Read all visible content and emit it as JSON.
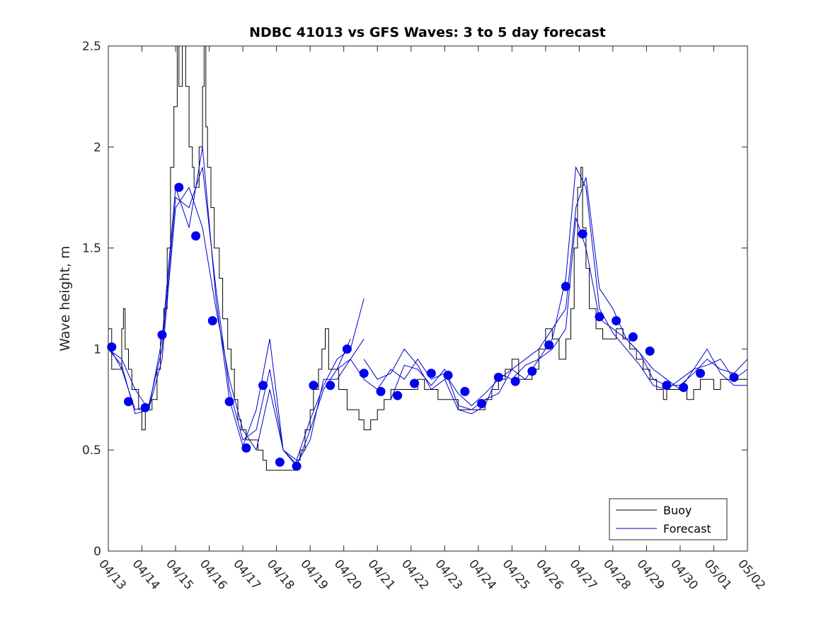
{
  "chart_data": {
    "type": "line",
    "title": "NDBC 41013 vs GFS Waves: 3 to 5 day forecast",
    "ylabel": "Wave height, m",
    "xlabel": "",
    "xlim": [
      0,
      19
    ],
    "ylim": [
      0,
      2.5
    ],
    "yticks": [
      0,
      0.5,
      1,
      1.5,
      2,
      2.5
    ],
    "ytick_labels": [
      "0",
      "0.5",
      "1",
      "1.5",
      "2",
      "2.5"
    ],
    "xtick_labels": [
      "04/13",
      "04/14",
      "04/15",
      "04/16",
      "04/17",
      "04/18",
      "04/19",
      "04/20",
      "04/21",
      "04/22",
      "04/23",
      "04/24",
      "04/25",
      "04/26",
      "04/27",
      "04/28",
      "04/29",
      "04/30",
      "05/01",
      "05/02"
    ],
    "legend": {
      "position": "bottom-right",
      "entries": [
        {
          "label": "Buoy",
          "color": "#000000"
        },
        {
          "label": "Forecast",
          "color": "#0000cc"
        }
      ]
    },
    "buoy": {
      "name": "Buoy",
      "color": "#000000",
      "points": [
        [
          0,
          1.1
        ],
        [
          0.1,
          0.9
        ],
        [
          0.3,
          0.9
        ],
        [
          0.4,
          1.1
        ],
        [
          0.45,
          1.2
        ],
        [
          0.5,
          1.0
        ],
        [
          0.6,
          0.9
        ],
        [
          0.7,
          0.8
        ],
        [
          0.9,
          0.7
        ],
        [
          1.0,
          0.6
        ],
        [
          1.1,
          0.7
        ],
        [
          1.3,
          0.75
        ],
        [
          1.45,
          0.9
        ],
        [
          1.55,
          1.05
        ],
        [
          1.65,
          1.2
        ],
        [
          1.75,
          1.5
        ],
        [
          1.85,
          1.9
        ],
        [
          1.95,
          2.2
        ],
        [
          2.05,
          2.5
        ],
        [
          2.1,
          2.3
        ],
        [
          2.2,
          2.5
        ],
        [
          2.3,
          2.3
        ],
        [
          2.4,
          2.0
        ],
        [
          2.5,
          1.9
        ],
        [
          2.55,
          1.8
        ],
        [
          2.7,
          2.0
        ],
        [
          2.8,
          2.3
        ],
        [
          2.85,
          2.5
        ],
        [
          2.9,
          2.1
        ],
        [
          2.95,
          1.9
        ],
        [
          3.05,
          1.7
        ],
        [
          3.15,
          1.5
        ],
        [
          3.3,
          1.35
        ],
        [
          3.4,
          1.15
        ],
        [
          3.55,
          1.0
        ],
        [
          3.65,
          0.9
        ],
        [
          3.75,
          0.75
        ],
        [
          3.85,
          0.65
        ],
        [
          3.95,
          0.6
        ],
        [
          4.1,
          0.55
        ],
        [
          4.3,
          0.55
        ],
        [
          4.45,
          0.5
        ],
        [
          4.6,
          0.45
        ],
        [
          4.7,
          0.4
        ],
        [
          4.9,
          0.4
        ],
        [
          5.2,
          0.4
        ],
        [
          5.5,
          0.4
        ],
        [
          5.6,
          0.45
        ],
        [
          5.7,
          0.5
        ],
        [
          5.85,
          0.6
        ],
        [
          6.0,
          0.7
        ],
        [
          6.1,
          0.8
        ],
        [
          6.25,
          0.9
        ],
        [
          6.35,
          1.0
        ],
        [
          6.45,
          1.1
        ],
        [
          6.55,
          0.9
        ],
        [
          6.7,
          0.9
        ],
        [
          6.85,
          0.8
        ],
        [
          7.0,
          0.8
        ],
        [
          7.1,
          0.7
        ],
        [
          7.3,
          0.7
        ],
        [
          7.45,
          0.65
        ],
        [
          7.6,
          0.6
        ],
        [
          7.8,
          0.65
        ],
        [
          8.0,
          0.7
        ],
        [
          8.2,
          0.75
        ],
        [
          8.4,
          0.8
        ],
        [
          8.6,
          0.8
        ],
        [
          8.8,
          0.8
        ],
        [
          9.0,
          0.8
        ],
        [
          9.2,
          0.85
        ],
        [
          9.4,
          0.8
        ],
        [
          9.6,
          0.8
        ],
        [
          9.8,
          0.75
        ],
        [
          10.0,
          0.75
        ],
        [
          10.2,
          0.75
        ],
        [
          10.4,
          0.7
        ],
        [
          10.6,
          0.7
        ],
        [
          10.8,
          0.7
        ],
        [
          11.0,
          0.7
        ],
        [
          11.2,
          0.75
        ],
        [
          11.4,
          0.8
        ],
        [
          11.6,
          0.85
        ],
        [
          11.8,
          0.9
        ],
        [
          12.0,
          0.95
        ],
        [
          12.2,
          0.85
        ],
        [
          12.4,
          0.85
        ],
        [
          12.6,
          0.9
        ],
        [
          12.8,
          1.0
        ],
        [
          13.0,
          1.1
        ],
        [
          13.2,
          1.05
        ],
        [
          13.4,
          0.95
        ],
        [
          13.6,
          1.05
        ],
        [
          13.75,
          1.2
        ],
        [
          13.85,
          1.5
        ],
        [
          13.95,
          1.8
        ],
        [
          14.05,
          1.9
        ],
        [
          14.1,
          1.6
        ],
        [
          14.2,
          1.4
        ],
        [
          14.3,
          1.2
        ],
        [
          14.5,
          1.1
        ],
        [
          14.7,
          1.05
        ],
        [
          14.9,
          1.05
        ],
        [
          15.1,
          1.1
        ],
        [
          15.3,
          1.05
        ],
        [
          15.5,
          1.0
        ],
        [
          15.7,
          0.95
        ],
        [
          15.9,
          0.9
        ],
        [
          16.1,
          0.85
        ],
        [
          16.3,
          0.8
        ],
        [
          16.5,
          0.75
        ],
        [
          16.6,
          0.8
        ],
        [
          16.8,
          0.8
        ],
        [
          17.0,
          0.8
        ],
        [
          17.2,
          0.75
        ],
        [
          17.4,
          0.8
        ],
        [
          17.6,
          0.85
        ],
        [
          17.8,
          0.85
        ],
        [
          18.0,
          0.8
        ],
        [
          18.2,
          0.85
        ],
        [
          18.4,
          0.85
        ],
        [
          18.6,
          0.85
        ],
        [
          18.8,
          0.85
        ],
        [
          19.0,
          0.9
        ]
      ]
    },
    "forecast_series": [
      {
        "points": [
          [
            0,
            1.0
          ],
          [
            0.4,
            0.95
          ],
          [
            0.8,
            0.8
          ],
          [
            1.2,
            0.7
          ],
          [
            1.6,
            0.95
          ],
          [
            2.0,
            1.7
          ],
          [
            2.4,
            1.8
          ],
          [
            2.8,
            1.6
          ],
          [
            3.2,
            1.2
          ],
          [
            3.6,
            0.85
          ],
          [
            4.0,
            0.6
          ],
          [
            4.4,
            0.5
          ],
          [
            4.8,
            0.8
          ],
          [
            5.2,
            0.5
          ],
          [
            5.6,
            0.42
          ],
          [
            6.0,
            0.6
          ],
          [
            6.4,
            0.8
          ],
          [
            6.8,
            0.9
          ],
          [
            7.2,
            1.05
          ]
        ]
      },
      {
        "points": [
          [
            0,
            1.02
          ],
          [
            0.4,
            0.9
          ],
          [
            0.8,
            0.7
          ],
          [
            1.2,
            0.72
          ],
          [
            1.6,
            1.0
          ],
          [
            2.0,
            1.75
          ],
          [
            2.4,
            1.7
          ],
          [
            2.8,
            1.9
          ],
          [
            3.2,
            1.3
          ],
          [
            3.6,
            0.8
          ],
          [
            4.0,
            0.55
          ],
          [
            4.4,
            0.6
          ],
          [
            4.8,
            0.9
          ],
          [
            5.2,
            0.5
          ],
          [
            5.6,
            0.43
          ],
          [
            6.0,
            0.55
          ],
          [
            6.4,
            0.85
          ],
          [
            6.8,
            0.85
          ],
          [
            7.2,
            0.95
          ],
          [
            7.6,
            1.05
          ]
        ]
      },
      {
        "points": [
          [
            0,
            1.0
          ],
          [
            0.4,
            0.92
          ],
          [
            0.8,
            0.68
          ],
          [
            1.2,
            0.7
          ],
          [
            1.6,
            1.05
          ],
          [
            2.0,
            1.8
          ],
          [
            2.4,
            1.6
          ],
          [
            2.8,
            2.0
          ],
          [
            3.2,
            1.25
          ],
          [
            3.6,
            0.75
          ],
          [
            4.0,
            0.52
          ],
          [
            4.4,
            0.7
          ],
          [
            4.8,
            1.05
          ],
          [
            5.2,
            0.5
          ],
          [
            5.6,
            0.45
          ],
          [
            6.0,
            0.65
          ],
          [
            6.4,
            0.82
          ],
          [
            6.8,
            0.95
          ],
          [
            7.2,
            1.0
          ],
          [
            7.6,
            1.25
          ]
        ]
      },
      {
        "points": [
          [
            6.8,
            0.9
          ],
          [
            7.2,
            0.95
          ],
          [
            7.6,
            0.85
          ],
          [
            8.0,
            0.8
          ],
          [
            8.4,
            0.9
          ],
          [
            8.8,
            0.85
          ],
          [
            9.2,
            0.95
          ],
          [
            9.6,
            0.85
          ],
          [
            10.0,
            0.88
          ],
          [
            10.4,
            0.78
          ],
          [
            10.8,
            0.72
          ],
          [
            11.2,
            0.78
          ],
          [
            11.6,
            0.85
          ],
          [
            12.0,
            0.9
          ],
          [
            12.4,
            0.85
          ],
          [
            12.8,
            0.95
          ],
          [
            13.2,
            1.0
          ],
          [
            13.6,
            1.1
          ],
          [
            13.9,
            1.65
          ],
          [
            14.2,
            1.5
          ],
          [
            14.6,
            1.15
          ],
          [
            15.0,
            1.1
          ],
          [
            15.4,
            1.05
          ],
          [
            15.8,
            0.98
          ],
          [
            16.2,
            0.85
          ],
          [
            16.6,
            0.82
          ],
          [
            17.0,
            0.82
          ],
          [
            17.4,
            0.88
          ],
          [
            17.8,
            0.95
          ],
          [
            18.2,
            0.9
          ],
          [
            18.6,
            0.88
          ],
          [
            19.0,
            0.95
          ]
        ]
      },
      {
        "points": [
          [
            7.6,
            0.95
          ],
          [
            8.0,
            0.85
          ],
          [
            8.4,
            0.88
          ],
          [
            8.8,
            1.0
          ],
          [
            9.2,
            0.92
          ],
          [
            9.6,
            0.8
          ],
          [
            10.0,
            0.85
          ],
          [
            10.4,
            0.7
          ],
          [
            10.8,
            0.68
          ],
          [
            11.2,
            0.72
          ],
          [
            11.6,
            0.88
          ],
          [
            12.0,
            0.85
          ],
          [
            12.4,
            0.92
          ],
          [
            12.8,
            0.95
          ],
          [
            13.2,
            1.05
          ],
          [
            13.6,
            1.35
          ],
          [
            13.9,
            1.9
          ],
          [
            14.2,
            1.8
          ],
          [
            14.6,
            1.2
          ],
          [
            15.0,
            1.08
          ],
          [
            15.4,
            1.0
          ],
          [
            15.8,
            0.92
          ],
          [
            16.2,
            0.82
          ],
          [
            16.6,
            0.8
          ],
          [
            17.0,
            0.85
          ],
          [
            17.4,
            0.9
          ],
          [
            17.8,
            1.0
          ],
          [
            18.2,
            0.88
          ],
          [
            18.6,
            0.82
          ],
          [
            19.0,
            0.82
          ]
        ]
      },
      {
        "points": [
          [
            8.4,
            0.75
          ],
          [
            8.8,
            0.92
          ],
          [
            9.2,
            0.9
          ],
          [
            9.6,
            0.82
          ],
          [
            10.0,
            0.9
          ],
          [
            10.4,
            0.72
          ],
          [
            10.8,
            0.7
          ],
          [
            11.2,
            0.75
          ],
          [
            11.6,
            0.78
          ],
          [
            12.0,
            0.9
          ],
          [
            12.4,
            0.95
          ],
          [
            12.8,
            1.0
          ],
          [
            13.2,
            1.1
          ],
          [
            13.6,
            1.2
          ],
          [
            13.9,
            1.7
          ],
          [
            14.2,
            1.85
          ],
          [
            14.6,
            1.3
          ],
          [
            15.0,
            1.2
          ],
          [
            15.4,
            1.05
          ],
          [
            15.8,
            0.98
          ],
          [
            16.2,
            0.9
          ],
          [
            16.6,
            0.85
          ],
          [
            17.0,
            0.8
          ],
          [
            17.4,
            0.9
          ],
          [
            17.8,
            0.92
          ],
          [
            18.2,
            0.95
          ],
          [
            18.6,
            0.85
          ],
          [
            19.0,
            0.9
          ]
        ]
      }
    ],
    "forecast_markers": {
      "name": "Forecast",
      "color": "#0000ee",
      "points": [
        [
          0.1,
          1.01
        ],
        [
          0.6,
          0.74
        ],
        [
          1.1,
          0.71
        ],
        [
          1.6,
          1.07
        ],
        [
          2.1,
          1.8
        ],
        [
          2.6,
          1.56
        ],
        [
          3.1,
          1.14
        ],
        [
          3.6,
          0.74
        ],
        [
          4.1,
          0.51
        ],
        [
          4.6,
          0.82
        ],
        [
          5.1,
          0.44
        ],
        [
          5.6,
          0.42
        ],
        [
          6.1,
          0.82
        ],
        [
          6.6,
          0.82
        ],
        [
          7.1,
          1.0
        ],
        [
          7.6,
          0.88
        ],
        [
          8.1,
          0.79
        ],
        [
          8.6,
          0.77
        ],
        [
          9.1,
          0.83
        ],
        [
          9.6,
          0.88
        ],
        [
          10.1,
          0.87
        ],
        [
          10.6,
          0.79
        ],
        [
          11.1,
          0.73
        ],
        [
          11.6,
          0.86
        ],
        [
          12.1,
          0.84
        ],
        [
          12.6,
          0.89
        ],
        [
          13.1,
          1.02
        ],
        [
          13.6,
          1.31
        ],
        [
          14.1,
          1.57
        ],
        [
          14.6,
          1.16
        ],
        [
          15.1,
          1.14
        ],
        [
          15.6,
          1.06
        ],
        [
          16.1,
          0.99
        ],
        [
          16.6,
          0.82
        ],
        [
          17.1,
          0.81
        ],
        [
          17.6,
          0.88
        ],
        [
          18.6,
          0.86
        ]
      ]
    }
  }
}
